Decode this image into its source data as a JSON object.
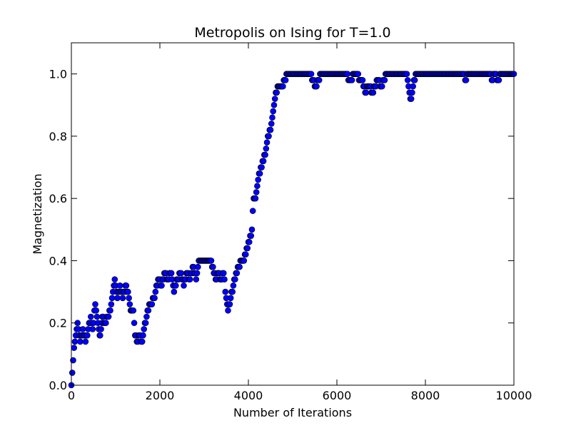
{
  "chart_data": {
    "type": "scatter",
    "title": "Metropolis on Ising for T=1.0",
    "xlabel": "Number of Iterations",
    "ylabel": "Magnetization",
    "xlim": [
      0,
      10000
    ],
    "ylim": [
      0,
      1.1
    ],
    "xticks": [
      0,
      2000,
      4000,
      6000,
      8000,
      10000
    ],
    "yticks": [
      0.0,
      0.2,
      0.4,
      0.6,
      0.8,
      1.0
    ],
    "xtick_labels": [
      "0",
      "2000",
      "4000",
      "6000",
      "8000",
      "10000"
    ],
    "ytick_labels": [
      "0.0",
      "0.2",
      "0.4",
      "0.6",
      "0.8",
      "1.0"
    ],
    "grid": false,
    "marker_color": "#0000ff",
    "marker_edge": "#000000",
    "series": [
      {
        "name": "magnetization",
        "x_step": 20,
        "anchors": [
          [
            0,
            0.0
          ],
          [
            40,
            0.08
          ],
          [
            80,
            0.14
          ],
          [
            140,
            0.2
          ],
          [
            200,
            0.14
          ],
          [
            260,
            0.18
          ],
          [
            320,
            0.14
          ],
          [
            380,
            0.18
          ],
          [
            440,
            0.22
          ],
          [
            480,
            0.18
          ],
          [
            540,
            0.26
          ],
          [
            600,
            0.2
          ],
          [
            650,
            0.16
          ],
          [
            700,
            0.22
          ],
          [
            760,
            0.2
          ],
          [
            820,
            0.22
          ],
          [
            880,
            0.24
          ],
          [
            940,
            0.3
          ],
          [
            980,
            0.34
          ],
          [
            1040,
            0.28
          ],
          [
            1100,
            0.32
          ],
          [
            1160,
            0.28
          ],
          [
            1220,
            0.32
          ],
          [
            1280,
            0.3
          ],
          [
            1340,
            0.24
          ],
          [
            1400,
            0.24
          ],
          [
            1440,
            0.16
          ],
          [
            1480,
            0.14
          ],
          [
            1540,
            0.16
          ],
          [
            1600,
            0.14
          ],
          [
            1640,
            0.18
          ],
          [
            1700,
            0.22
          ],
          [
            1760,
            0.26
          ],
          [
            1820,
            0.26
          ],
          [
            1900,
            0.3
          ],
          [
            1980,
            0.34
          ],
          [
            2040,
            0.32
          ],
          [
            2100,
            0.36
          ],
          [
            2180,
            0.34
          ],
          [
            2260,
            0.36
          ],
          [
            2320,
            0.3
          ],
          [
            2400,
            0.34
          ],
          [
            2480,
            0.36
          ],
          [
            2540,
            0.32
          ],
          [
            2600,
            0.36
          ],
          [
            2680,
            0.34
          ],
          [
            2760,
            0.38
          ],
          [
            2820,
            0.34
          ],
          [
            2880,
            0.4
          ],
          [
            3000,
            0.4
          ],
          [
            3120,
            0.4
          ],
          [
            3200,
            0.38
          ],
          [
            3260,
            0.34
          ],
          [
            3320,
            0.36
          ],
          [
            3380,
            0.34
          ],
          [
            3440,
            0.36
          ],
          [
            3500,
            0.28
          ],
          [
            3540,
            0.24
          ],
          [
            3600,
            0.28
          ],
          [
            3660,
            0.32
          ],
          [
            3720,
            0.36
          ],
          [
            3780,
            0.38
          ],
          [
            3840,
            0.4
          ],
          [
            3900,
            0.4
          ],
          [
            3960,
            0.44
          ],
          [
            4020,
            0.46
          ],
          [
            4080,
            0.5
          ],
          [
            4120,
            0.6
          ],
          [
            4160,
            0.6
          ],
          [
            4220,
            0.66
          ],
          [
            4280,
            0.7
          ],
          [
            4340,
            0.72
          ],
          [
            4400,
            0.76
          ],
          [
            4440,
            0.8
          ],
          [
            4500,
            0.82
          ],
          [
            4560,
            0.88
          ],
          [
            4620,
            0.94
          ],
          [
            4680,
            0.96
          ],
          [
            4760,
            0.96
          ],
          [
            4820,
            0.98
          ],
          [
            4880,
            1.0
          ],
          [
            5000,
            1.0
          ],
          [
            5400,
            1.0
          ],
          [
            5460,
            0.98
          ],
          [
            5520,
            0.96
          ],
          [
            5580,
            0.98
          ],
          [
            5640,
            1.0
          ],
          [
            6200,
            1.0
          ],
          [
            6300,
            0.98
          ],
          [
            6400,
            1.0
          ],
          [
            6560,
            0.98
          ],
          [
            6640,
            0.94
          ],
          [
            6720,
            0.96
          ],
          [
            6800,
            0.94
          ],
          [
            6860,
            0.96
          ],
          [
            6940,
            0.98
          ],
          [
            7000,
            0.96
          ],
          [
            7060,
            0.98
          ],
          [
            7120,
            1.0
          ],
          [
            7500,
            1.0
          ],
          [
            7560,
            1.0
          ],
          [
            7600,
            0.98
          ],
          [
            7640,
            0.94
          ],
          [
            7680,
            0.92
          ],
          [
            7720,
            0.96
          ],
          [
            7780,
            1.0
          ],
          [
            8860,
            1.0
          ],
          [
            8900,
            0.98
          ],
          [
            8960,
            1.0
          ],
          [
            9460,
            1.0
          ],
          [
            9500,
            0.98
          ],
          [
            9560,
            1.0
          ],
          [
            9640,
            0.98
          ],
          [
            9700,
            1.0
          ],
          [
            10000,
            1.0
          ]
        ]
      }
    ]
  }
}
